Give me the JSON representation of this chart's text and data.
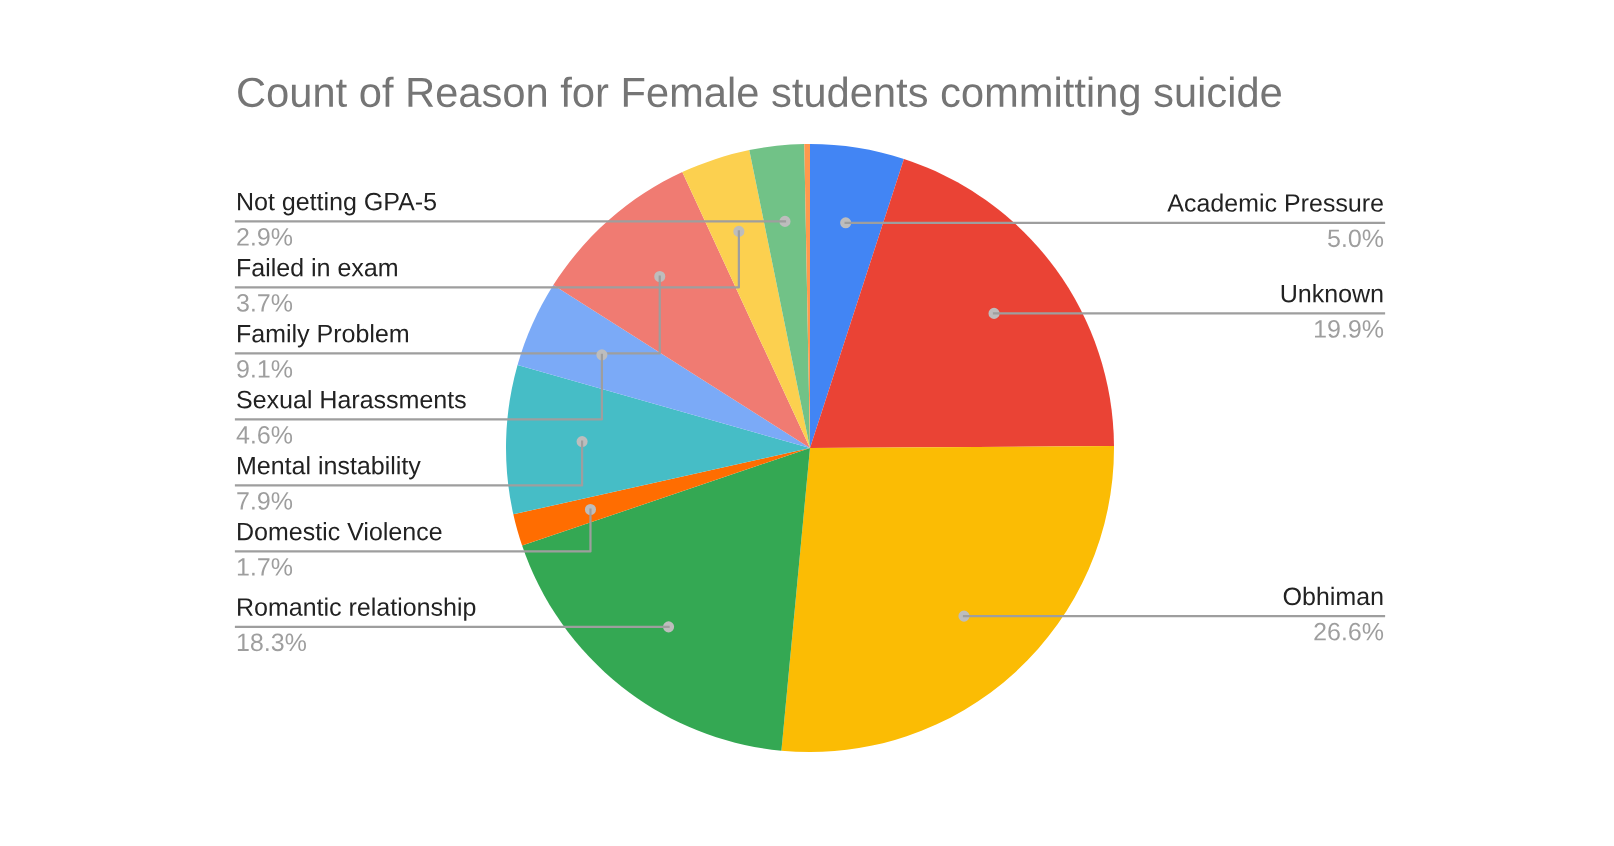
{
  "chart_data": {
    "type": "pie",
    "title": "Count of Reason for Female students committing suicide",
    "categories": [
      "Academic Pressure",
      "Unknown",
      "Obhiman",
      "Romantic relationship",
      "Domestic Violence",
      "Mental instability",
      "Sexual Harassments",
      "Family Problem",
      "Failed in exam",
      "Not getting GPA-5",
      null
    ],
    "values": [
      5.0,
      19.9,
      26.6,
      18.3,
      1.7,
      7.9,
      4.6,
      9.1,
      3.7,
      2.9,
      0.3
    ],
    "value_labels": [
      "5.0%",
      "19.9%",
      "26.6%",
      "18.3%",
      "1.7%",
      "7.9%",
      "4.6%",
      "9.1%",
      "3.7%",
      "2.9%",
      null
    ],
    "colors": [
      "#4285f4",
      "#ea4335",
      "#fbbc04",
      "#34a853",
      "#ff6d01",
      "#46bdc6",
      "#7baaf7",
      "#f07b72",
      "#fcd04f",
      "#71c287",
      "#ff994d"
    ],
    "legend": false
  }
}
